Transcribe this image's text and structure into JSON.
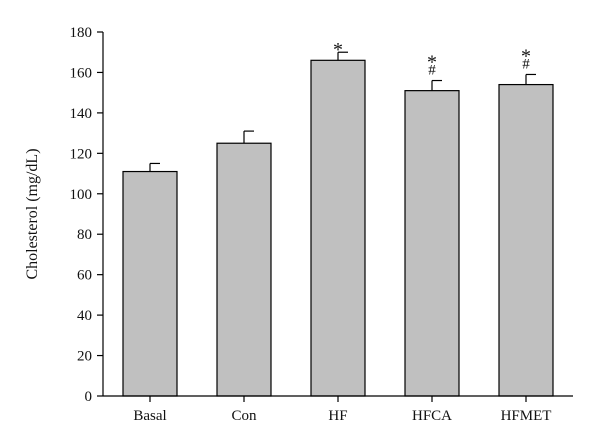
{
  "chart_data": {
    "type": "bar",
    "categories": [
      "Basal",
      "Con",
      "HF",
      "HFCA",
      "HFMET"
    ],
    "values": [
      111,
      125,
      166,
      151,
      154
    ],
    "errors": [
      4,
      6,
      4,
      5,
      5
    ],
    "annotations": [
      [],
      [],
      [
        "*"
      ],
      [
        "*",
        "#"
      ],
      [
        "*",
        "#"
      ]
    ],
    "title": "",
    "xlabel": "",
    "ylabel": "Cholesterol (mg/dL)",
    "ylim": [
      0,
      180
    ],
    "yticks": [
      0,
      20,
      40,
      60,
      80,
      100,
      120,
      140,
      160,
      180
    ],
    "grid": false,
    "legend": "none",
    "colors": {
      "bar_fill": "#c0c0c0",
      "bar_stroke": "#000000",
      "axis": "#000000"
    }
  }
}
